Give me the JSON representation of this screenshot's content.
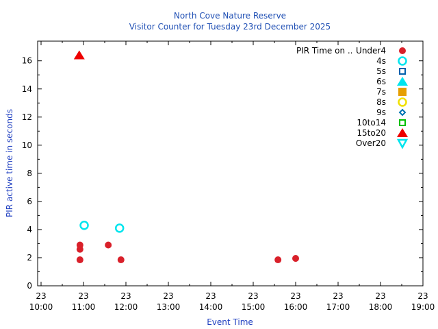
{
  "chart_data": {
    "type": "scatter",
    "title": "North Cove Nature Reserve",
    "subtitle": "Visitor Counter for Tuesday 23rd December 2025",
    "xlabel": "Event Time",
    "ylabel": "PIR active time in seconds",
    "xlim": [
      "10:00",
      "19:00"
    ],
    "ylim": [
      0,
      17.4
    ],
    "x_ticks": [
      {
        "top": "23",
        "bottom": "10:00"
      },
      {
        "top": "23",
        "bottom": "11:00"
      },
      {
        "top": "23",
        "bottom": "12:00"
      },
      {
        "top": "23",
        "bottom": "13:00"
      },
      {
        "top": "23",
        "bottom": "14:00"
      },
      {
        "top": "23",
        "bottom": "15:00"
      },
      {
        "top": "23",
        "bottom": "16:00"
      },
      {
        "top": "23",
        "bottom": "17:00"
      },
      {
        "top": "23",
        "bottom": "18:00"
      },
      {
        "top": "23",
        "bottom": "19:00"
      }
    ],
    "y_ticks": [
      "0",
      "2",
      "4",
      "6",
      "8",
      "10",
      "12",
      "14",
      "16"
    ],
    "grid": false,
    "legend_title": "PIR Time on ..",
    "legend_position": "top-right",
    "series": [
      {
        "name": "Under4",
        "marker": "filled-circle",
        "color": "#d9202a",
        "points": [
          {
            "x": "10:55",
            "y": 1.85
          },
          {
            "x": "10:55",
            "y": 2.6
          },
          {
            "x": "10:55",
            "y": 2.9
          },
          {
            "x": "11:35",
            "y": 2.9
          },
          {
            "x": "11:53",
            "y": 1.85
          },
          {
            "x": "15:35",
            "y": 1.85
          },
          {
            "x": "16:00",
            "y": 1.95
          }
        ]
      },
      {
        "name": "4s",
        "marker": "open-circle",
        "color": "#00e5ee",
        "points": [
          {
            "x": "11:01",
            "y": 4.3
          },
          {
            "x": "11:51",
            "y": 4.1
          }
        ]
      },
      {
        "name": "5s",
        "marker": "open-square",
        "color": "#0060ad",
        "points": []
      },
      {
        "name": "6s",
        "marker": "filled-triangle",
        "color": "#00e5ee",
        "points": []
      },
      {
        "name": "7s",
        "marker": "filled-square",
        "color": "#e69f00",
        "points": []
      },
      {
        "name": "8s",
        "marker": "open-circle",
        "color": "#f0e000",
        "points": []
      },
      {
        "name": "9s",
        "marker": "open-diamond",
        "color": "#0072b2",
        "points": []
      },
      {
        "name": "10to14",
        "marker": "open-square",
        "color": "#00c000",
        "points": []
      },
      {
        "name": "15to20",
        "marker": "filled-triangle",
        "color": "#ee0000",
        "points": [
          {
            "x": "10:54",
            "y": 16.4
          }
        ]
      },
      {
        "name": "Over20",
        "marker": "open-triangle-down",
        "color": "#00e5ee",
        "points": []
      }
    ]
  }
}
